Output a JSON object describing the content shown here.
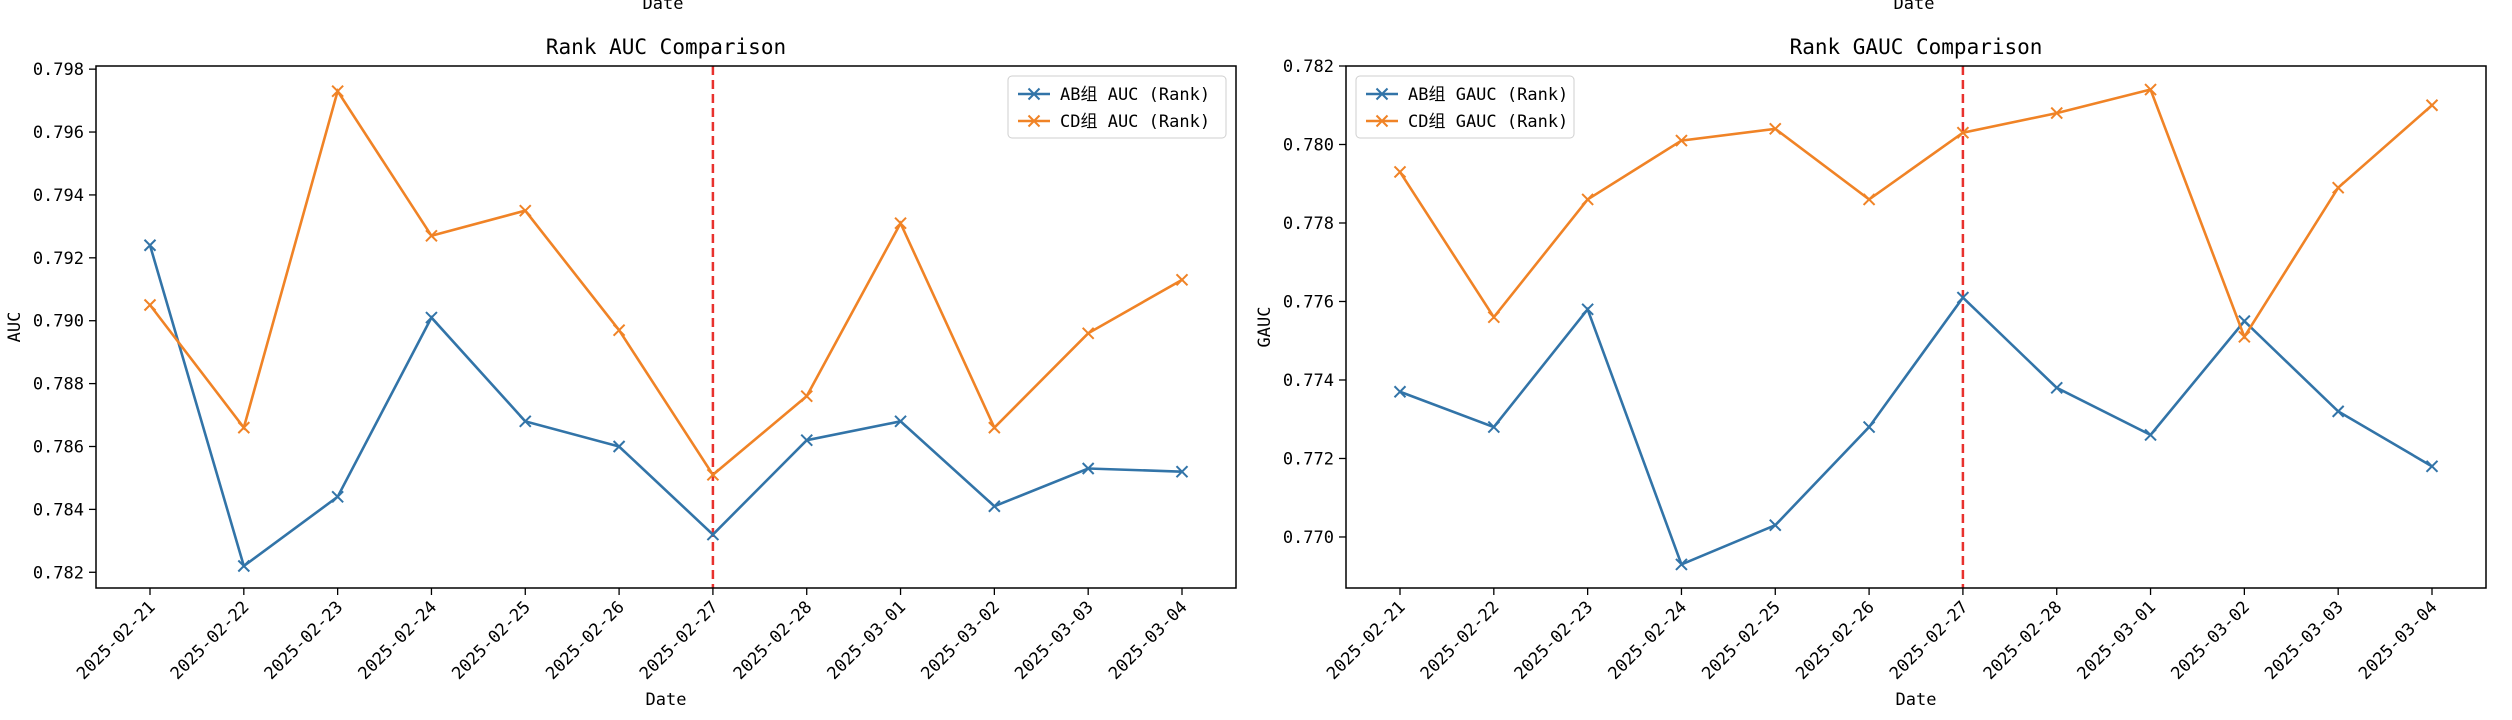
{
  "top_cut_labels": [
    "Date",
    "Date"
  ],
  "colors": {
    "ab": "#3274a8",
    "cd": "#f08326",
    "ref_line": "#e8312d"
  },
  "chart_data": [
    {
      "type": "line",
      "title": "Rank AUC Comparison",
      "xlabel": "Date",
      "ylabel": "AUC",
      "categories": [
        "2025-02-21",
        "2025-02-22",
        "2025-02-23",
        "2025-02-24",
        "2025-02-25",
        "2025-02-26",
        "2025-02-27",
        "2025-02-28",
        "2025-03-01",
        "2025-03-02",
        "2025-03-03",
        "2025-03-04"
      ],
      "series": [
        {
          "name": "AB组 AUC (Rank)",
          "color": "#3274a8",
          "marker": "x",
          "values": [
            0.7924,
            0.7822,
            0.7844,
            0.7901,
            0.7868,
            0.786,
            0.7832,
            0.7862,
            0.7868,
            0.7841,
            0.7853,
            0.7852
          ]
        },
        {
          "name": "CD组 AUC (Rank)",
          "color": "#f08326",
          "marker": "x",
          "values": [
            0.7905,
            0.7866,
            0.7973,
            0.7927,
            0.7935,
            0.7897,
            0.7851,
            0.7876,
            0.7931,
            0.7866,
            0.7896,
            0.7913
          ]
        }
      ],
      "ylim": [
        0.7815,
        0.7981
      ],
      "yticks": [
        "0.782",
        "0.784",
        "0.786",
        "0.788",
        "0.790",
        "0.792",
        "0.794",
        "0.796",
        "0.798"
      ],
      "reference_line": {
        "x": "2025-02-27",
        "style": "dashed",
        "color": "#e8312d"
      },
      "legend": "top-right",
      "grid": false
    },
    {
      "type": "line",
      "title": "Rank GAUC Comparison",
      "xlabel": "Date",
      "ylabel": "GAUC",
      "categories": [
        "2025-02-21",
        "2025-02-22",
        "2025-02-23",
        "2025-02-24",
        "2025-02-25",
        "2025-02-26",
        "2025-02-27",
        "2025-02-28",
        "2025-03-01",
        "2025-03-02",
        "2025-03-03",
        "2025-03-04"
      ],
      "series": [
        {
          "name": "AB组 GAUC (Rank)",
          "color": "#3274a8",
          "marker": "x",
          "values": [
            0.7737,
            0.7728,
            0.7758,
            0.7693,
            0.7703,
            0.7728,
            0.7761,
            0.7738,
            0.7726,
            0.7755,
            0.7732,
            0.7718
          ]
        },
        {
          "name": "CD组 GAUC (Rank)",
          "color": "#f08326",
          "marker": "x",
          "values": [
            0.7793,
            0.7756,
            0.7786,
            0.7801,
            0.7804,
            0.7786,
            0.7803,
            0.7808,
            0.7814,
            0.7751,
            0.7789,
            0.781
          ]
        }
      ],
      "ylim": [
        0.7687,
        0.782
      ],
      "yticks": [
        "0.770",
        "0.772",
        "0.774",
        "0.776",
        "0.778",
        "0.780",
        "0.782"
      ],
      "reference_line": {
        "x": "2025-02-27",
        "style": "dashed",
        "color": "#e8312d"
      },
      "legend": "top-left",
      "grid": false
    }
  ]
}
